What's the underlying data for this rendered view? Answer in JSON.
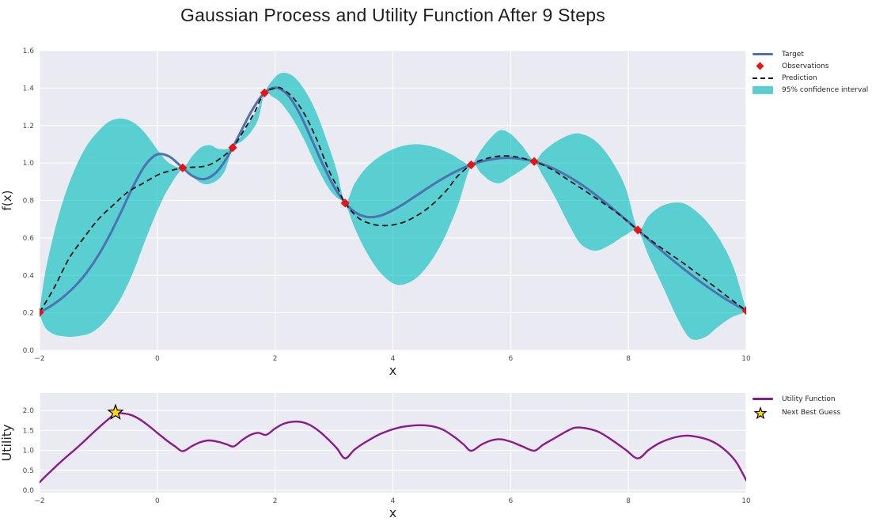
{
  "figure": {
    "title": "Gaussian Process and Utility Function After 9 Steps"
  },
  "colors": {
    "figure_bg": "#ffffff",
    "axes_bg": "#EAEAF2",
    "grid": "#ffffff",
    "tick_text": "#4d4d4d",
    "label_text": "#262626",
    "target_blue": "#4C72B0",
    "observation_red": "#EC1212",
    "prediction_black": "#141414",
    "band_teal": "#00BFBF",
    "band_opacity": 0.62,
    "utility_purple": "#8B1A8B",
    "star_gold": "#FFD700",
    "star_edge": "#000000"
  },
  "chart_data": [
    {
      "name": "gp",
      "type": "line",
      "title": "",
      "xlabel": "x",
      "ylabel": "f(x)",
      "xlim": [
        -2,
        10
      ],
      "ylim": [
        0,
        1.6
      ],
      "grid": true,
      "legend_position": "outside-right-top",
      "xtick_vals": [
        -2,
        0,
        2,
        4,
        6,
        8,
        10
      ],
      "xticks": [
        "−2",
        "0",
        "2",
        "4",
        "6",
        "8",
        "10"
      ],
      "ytick_vals": [
        0,
        0.2,
        0.4,
        0.6,
        0.8,
        1.0,
        1.2,
        1.4,
        1.6
      ],
      "yticks": [
        "0.0",
        "0.2",
        "0.4",
        "0.6",
        "0.8",
        "1.0",
        "1.2",
        "1.4",
        "1.6"
      ],
      "legend": [
        {
          "label": "Target",
          "type": "line",
          "color": "#4C72B0"
        },
        {
          "label": "Observations",
          "type": "diamond",
          "color": "#EC1212"
        },
        {
          "label": "Prediction",
          "type": "dashed-line",
          "color": "#141414"
        },
        {
          "label": "95% confidence interval",
          "type": "patch",
          "color": "#59CFD2"
        }
      ],
      "series": {
        "target": {
          "x0": -2,
          "dx": 0.2,
          "color": "#4C72B0",
          "width": 3,
          "y": [
            0.202,
            0.238,
            0.284,
            0.342,
            0.415,
            0.508,
            0.62,
            0.749,
            0.882,
            0.991,
            1.046,
            1.035,
            0.983,
            0.93,
            0.914,
            0.95,
            1.037,
            1.156,
            1.277,
            1.368,
            1.402,
            1.368,
            1.274,
            1.141,
            1.0,
            0.874,
            0.783,
            0.729,
            0.711,
            0.72,
            0.748,
            0.785,
            0.826,
            0.868,
            0.908,
            0.943,
            0.974,
            0.998,
            1.015,
            1.025,
            1.027,
            1.021,
            1.008,
            0.987,
            0.959,
            0.925,
            0.885,
            0.84,
            0.791,
            0.739,
            0.686,
            0.631,
            0.576,
            0.522,
            0.469,
            0.419,
            0.371,
            0.326,
            0.284,
            0.246,
            0.212
          ]
        },
        "prediction": {
          "color": "#141414",
          "width": 1.8,
          "dash": "7 4.5",
          "x": [
            -2,
            -1.75,
            -1.5,
            -1.25,
            -1,
            -0.75,
            -0.5,
            -0.25,
            0,
            0.2,
            0.43,
            0.65,
            0.85,
            1.05,
            1.28,
            1.5,
            1.65,
            1.82,
            2,
            2.1,
            2.3,
            2.5,
            2.7,
            2.9,
            3.05,
            3.19,
            3.4,
            3.6,
            3.8,
            4.05,
            4.3,
            4.6,
            4.9,
            5.1,
            5.33,
            5.5,
            5.7,
            5.9,
            6.1,
            6.4,
            6.7,
            7,
            7.4,
            7.8,
            8.16,
            8.5,
            9,
            9.5,
            9.75,
            10
          ],
          "y": [
            0.202,
            0.335,
            0.49,
            0.6,
            0.7,
            0.775,
            0.845,
            0.89,
            0.935,
            0.957,
            0.974,
            0.978,
            0.986,
            1.02,
            1.082,
            1.19,
            1.27,
            1.374,
            1.398,
            1.4,
            1.35,
            1.26,
            1.13,
            0.97,
            0.875,
            0.786,
            0.71,
            0.678,
            0.666,
            0.672,
            0.7,
            0.76,
            0.85,
            0.93,
            0.99,
            1.015,
            1.032,
            1.038,
            1.032,
            1.008,
            0.965,
            0.905,
            0.823,
            0.735,
            0.642,
            0.56,
            0.45,
            0.33,
            0.27,
            0.212
          ]
        },
        "band_upper": {
          "color": "#00BFBF",
          "x": [
            -2,
            -1.9,
            -1.75,
            -1.6,
            -1.45,
            -1.3,
            -1.15,
            -1,
            -0.85,
            -0.7,
            -0.55,
            -0.4,
            -0.25,
            -0.1,
            0.05,
            0.2,
            0.43,
            0.6,
            0.75,
            0.9,
            1.05,
            1.28,
            1.45,
            1.6,
            1.72,
            1.82,
            1.95,
            2.1,
            2.3,
            2.5,
            2.7,
            2.9,
            3.05,
            3.19,
            3.35,
            3.55,
            3.8,
            4.1,
            4.4,
            4.7,
            5,
            5.18,
            5.33,
            5.5,
            5.65,
            5.82,
            6,
            6.2,
            6.4,
            6.55,
            6.75,
            7,
            7.2,
            7.45,
            7.7,
            7.95,
            8.16,
            8.35,
            8.6,
            8.88,
            9.1,
            9.35,
            9.6,
            9.8,
            10
          ],
          "y": [
            0.21,
            0.42,
            0.63,
            0.8,
            0.93,
            1.035,
            1.115,
            1.17,
            1.215,
            1.235,
            1.235,
            1.215,
            1.175,
            1.115,
            1.05,
            1.0,
            0.976,
            1.04,
            1.085,
            1.095,
            1.075,
            1.085,
            1.16,
            1.235,
            1.3,
            1.376,
            1.44,
            1.48,
            1.465,
            1.39,
            1.27,
            1.1,
            0.955,
            0.79,
            0.89,
            0.975,
            1.04,
            1.085,
            1.1,
            1.085,
            1.045,
            1.01,
            0.992,
            1.07,
            1.13,
            1.175,
            1.155,
            1.09,
            1.012,
            1.06,
            1.11,
            1.15,
            1.155,
            1.115,
            1.02,
            0.87,
            0.648,
            0.72,
            0.775,
            0.788,
            0.755,
            0.68,
            0.565,
            0.43,
            0.215
          ]
        },
        "band_lower": {
          "color": "#00BFBF",
          "x": [
            -2,
            -1.9,
            -1.75,
            -1.6,
            -1.45,
            -1.3,
            -1.15,
            -1,
            -0.85,
            -0.7,
            -0.55,
            -0.4,
            -0.25,
            -0.1,
            0.05,
            0.2,
            0.43,
            0.6,
            0.8,
            1,
            1.15,
            1.28,
            1.45,
            1.6,
            1.72,
            1.82,
            1.95,
            2.1,
            2.3,
            2.5,
            2.7,
            2.9,
            3.05,
            3.19,
            3.35,
            3.55,
            3.8,
            4.07,
            4.35,
            4.6,
            4.85,
            5.1,
            5.33,
            5.5,
            5.65,
            5.82,
            6,
            6.2,
            6.4,
            6.55,
            6.75,
            7,
            7.2,
            7.45,
            7.7,
            7.95,
            8.16,
            8.35,
            8.6,
            8.85,
            9.06,
            9.3,
            9.5,
            9.75,
            10
          ],
          "y": [
            0.194,
            0.12,
            0.085,
            0.075,
            0.072,
            0.078,
            0.09,
            0.12,
            0.17,
            0.235,
            0.32,
            0.425,
            0.55,
            0.67,
            0.78,
            0.87,
            0.968,
            0.925,
            0.887,
            0.905,
            0.96,
            1.078,
            1.12,
            1.17,
            1.24,
            1.37,
            1.355,
            1.32,
            1.235,
            1.12,
            0.985,
            0.87,
            0.815,
            0.782,
            0.655,
            0.525,
            0.41,
            0.35,
            0.375,
            0.455,
            0.585,
            0.77,
            0.985,
            0.945,
            0.905,
            0.893,
            0.925,
            0.965,
            1.002,
            0.93,
            0.82,
            0.665,
            0.565,
            0.532,
            0.565,
            0.615,
            0.636,
            0.5,
            0.33,
            0.16,
            0.062,
            0.07,
            0.12,
            0.175,
            0.205
          ]
        },
        "observations": {
          "color": "#EC1212",
          "marker": "diamond",
          "x": [
            -2,
            0.43,
            1.28,
            1.82,
            3.19,
            5.33,
            6.4,
            8.16,
            10
          ],
          "y": [
            0.202,
            0.974,
            1.082,
            1.374,
            0.786,
            0.99,
            1.008,
            0.642,
            0.212
          ]
        }
      }
    },
    {
      "name": "utility",
      "type": "line",
      "title": "",
      "xlabel": "x",
      "ylabel": "Utility",
      "xlim": [
        -2,
        10
      ],
      "ylim": [
        -0.06,
        2.44
      ],
      "grid": true,
      "legend_position": "outside-right-top",
      "xtick_vals": [
        -2,
        0,
        2,
        4,
        6,
        8,
        10
      ],
      "xticks": [
        "−2",
        "0",
        "2",
        "4",
        "6",
        "8",
        "10"
      ],
      "ytick_vals": [
        0,
        0.5,
        1.0,
        1.5,
        2.0
      ],
      "yticks": [
        "0.0",
        "0.5",
        "1.0",
        "1.5",
        "2.0"
      ],
      "legend": [
        {
          "label": "Utility Function",
          "type": "line",
          "color": "#8B1A8B"
        },
        {
          "label": "Next Best Guess",
          "type": "star",
          "color": "#FFD700"
        }
      ],
      "series": {
        "utility": {
          "color": "#8B1A8B",
          "width": 2.4,
          "x": [
            -2,
            -1.85,
            -1.7,
            -1.55,
            -1.4,
            -1.25,
            -1.1,
            -0.95,
            -0.8,
            -0.71,
            -0.6,
            -0.45,
            -0.3,
            -0.15,
            0,
            0.15,
            0.3,
            0.43,
            0.58,
            0.72,
            0.88,
            1.05,
            1.18,
            1.3,
            1.45,
            1.6,
            1.72,
            1.85,
            2,
            2.15,
            2.3,
            2.45,
            2.6,
            2.75,
            2.9,
            3.05,
            3.19,
            3.35,
            3.55,
            3.8,
            4.1,
            4.4,
            4.65,
            4.85,
            5.05,
            5.2,
            5.33,
            5.5,
            5.65,
            5.82,
            6,
            6.2,
            6.4,
            6.55,
            6.75,
            6.95,
            7.1,
            7.3,
            7.5,
            7.7,
            7.95,
            8.16,
            8.35,
            8.55,
            8.8,
            9,
            9.2,
            9.4,
            9.6,
            9.8,
            9.92,
            10
          ],
          "y": [
            0.2,
            0.42,
            0.63,
            0.83,
            1.02,
            1.22,
            1.43,
            1.63,
            1.82,
            1.93,
            1.93,
            1.89,
            1.78,
            1.62,
            1.44,
            1.26,
            1.1,
            0.98,
            1.1,
            1.2,
            1.25,
            1.21,
            1.15,
            1.1,
            1.27,
            1.4,
            1.44,
            1.39,
            1.55,
            1.67,
            1.72,
            1.71,
            1.63,
            1.48,
            1.28,
            1.05,
            0.8,
            1.02,
            1.22,
            1.42,
            1.57,
            1.63,
            1.61,
            1.52,
            1.33,
            1.15,
            0.99,
            1.14,
            1.24,
            1.28,
            1.22,
            1.1,
            0.99,
            1.14,
            1.31,
            1.48,
            1.57,
            1.55,
            1.46,
            1.28,
            1.02,
            0.8,
            1.02,
            1.2,
            1.33,
            1.37,
            1.33,
            1.24,
            1.06,
            0.77,
            0.48,
            0.25
          ]
        },
        "next_best_guess": {
          "x": -0.71,
          "y": 1.95,
          "marker": "star",
          "fill": "#FFD700",
          "edge": "#000000"
        }
      }
    }
  ]
}
